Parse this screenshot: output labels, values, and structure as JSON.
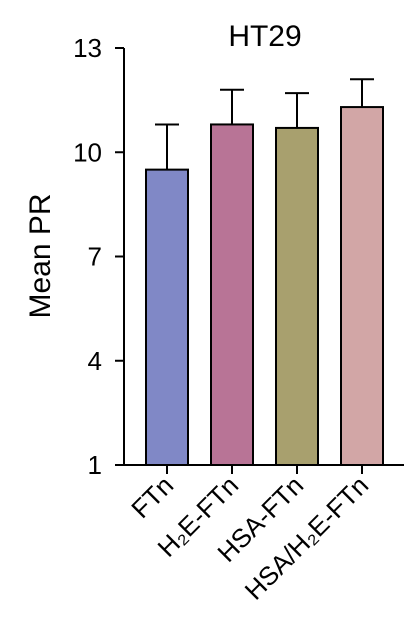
{
  "chart_data": {
    "type": "bar",
    "title": "HT29",
    "xlabel": "",
    "ylabel": "Mean PR",
    "ylim": [
      1,
      13
    ],
    "yticks": [
      1,
      4,
      7,
      10,
      13
    ],
    "grid": false,
    "categories": [
      "FTn",
      "H₂E-FTn",
      "HSA-FTn",
      "HSA/H₂E-FTn"
    ],
    "values": [
      9.5,
      10.8,
      10.7,
      11.3
    ],
    "error_upper": [
      10.8,
      11.8,
      11.7,
      12.1
    ],
    "colors": [
      "#8088c6",
      "#b87496",
      "#a8a06e",
      "#d2a6a6"
    ]
  }
}
